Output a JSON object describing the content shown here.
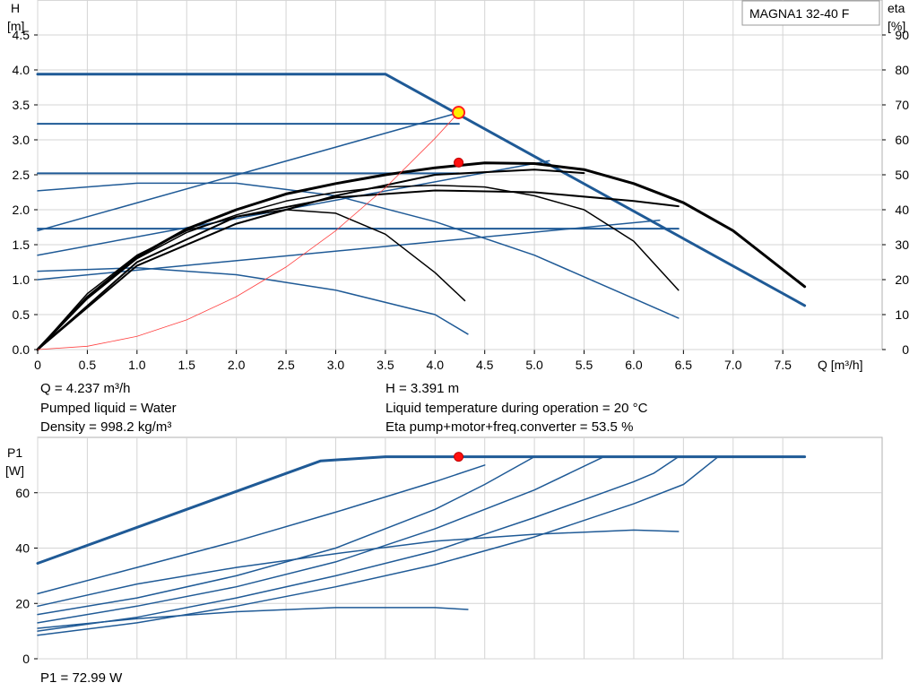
{
  "chart_data": [
    {
      "type": "line",
      "model_label": "MAGNA1 32-40 F",
      "y_label": "H",
      "y_unit": "[m]",
      "y2_label": "eta",
      "y2_unit": "[%]",
      "x_label": "Q [m³/h]",
      "xlim": [
        0,
        8.5
      ],
      "ylim": [
        0,
        5
      ],
      "y2lim": [
        0,
        100
      ],
      "x_ticks": [
        "0",
        "0.5",
        "1.0",
        "1.5",
        "2.0",
        "2.5",
        "3.0",
        "3.5",
        "4.0",
        "4.5",
        "5.0",
        "5.5",
        "6.0",
        "6.5",
        "7.0",
        "7.5"
      ],
      "y_ticks": [
        "0.0",
        "0.5",
        "1.0",
        "1.5",
        "2.0",
        "2.5",
        "3.0",
        "3.5",
        "4.0",
        "4.5"
      ],
      "y2_ticks": [
        "0",
        "10",
        "20",
        "30",
        "40",
        "50",
        "60",
        "70",
        "80",
        "90"
      ],
      "grid": true,
      "head_series": [
        {
          "x": [
            0,
            3.5,
            7.72
          ],
          "y": [
            3.94,
            3.94,
            0.63
          ],
          "role": "max-curve",
          "color": "#1f5a96",
          "width": 3
        },
        {
          "x": [
            0,
            4.24
          ],
          "y": [
            3.23,
            3.23
          ],
          "role": "constant-pressure",
          "color": "#1f5a96",
          "width": 2
        },
        {
          "x": [
            0,
            4.24
          ],
          "y": [
            2.52,
            2.52
          ],
          "role": "constant-pressure",
          "color": "#1f5a96",
          "width": 2
        },
        {
          "x": [
            0,
            6.45
          ],
          "y": [
            1.73,
            1.73
          ],
          "role": "constant-pressure",
          "color": "#1f5a96",
          "width": 2
        },
        {
          "x": [
            0,
            4.24
          ],
          "y": [
            1.7,
            3.39
          ],
          "role": "proportional-pressure",
          "color": "#1f5a96",
          "width": 1.5
        },
        {
          "x": [
            0,
            5.15
          ],
          "y": [
            1.35,
            2.7
          ],
          "role": "proportional-pressure",
          "color": "#1f5a96",
          "width": 1.5
        },
        {
          "x": [
            0,
            6.26
          ],
          "y": [
            1.0,
            1.85
          ],
          "role": "proportional-pressure",
          "color": "#1f5a96",
          "width": 1.5
        },
        {
          "x": [
            0,
            1.0,
            2.0,
            3.0,
            4.0,
            5.0,
            6.0,
            6.45
          ],
          "y": [
            2.27,
            2.38,
            2.38,
            2.2,
            1.83,
            1.35,
            0.73,
            0.45
          ],
          "role": "fixed-speed",
          "color": "#1f5a96",
          "width": 1.5
        },
        {
          "x": [
            0,
            1.0,
            2.0,
            3.0,
            4.0,
            4.33
          ],
          "y": [
            1.12,
            1.17,
            1.07,
            0.85,
            0.5,
            0.22
          ],
          "role": "fixed-speed",
          "color": "#1f5a96",
          "width": 1.5
        }
      ],
      "eta_series": [
        {
          "x": [
            0,
            0.5,
            1.0,
            1.5,
            2.0,
            2.5,
            3.0,
            3.5,
            4.0,
            4.5,
            5.0,
            5.5,
            6.0,
            6.5,
            7.0,
            7.72
          ],
          "y": [
            0,
            15,
            26.5,
            34.5,
            40,
            44.5,
            47.5,
            50,
            52,
            53.4,
            53.2,
            51.5,
            47.5,
            42,
            34,
            18
          ],
          "color": "#000000",
          "width": 3
        },
        {
          "x": [
            0,
            0.5,
            1.0,
            1.5,
            2.0,
            2.5,
            3.0,
            3.5,
            4.0,
            4.5,
            5.0,
            5.5,
            6.0,
            6.45
          ],
          "y": [
            0,
            14.5,
            26,
            33.5,
            38.5,
            42.5,
            45,
            46.5,
            47,
            46.5,
            44,
            40,
            31,
            17
          ],
          "color": "#000000",
          "width": 1.5
        },
        {
          "x": [
            0,
            0.5,
            1.0,
            1.5,
            2.0,
            2.5,
            3.0,
            3.5,
            4.0,
            4.3
          ],
          "y": [
            0,
            16,
            27,
            34,
            38,
            40,
            39,
            33,
            22,
            14
          ],
          "color": "#000000",
          "width": 1.5
        },
        {
          "x": [
            0,
            1.0,
            2.0,
            3.0,
            4.0,
            5.0,
            6.0,
            6.45
          ],
          "y": [
            0,
            25,
            38,
            43.5,
            45.5,
            45,
            42.5,
            41
          ],
          "color": "#000000",
          "width": 2
        },
        {
          "x": [
            0,
            1.0,
            2.0,
            3.0,
            4.0,
            5.0,
            5.5
          ],
          "y": [
            0,
            24,
            36,
            44,
            50,
            51.5,
            50.5
          ],
          "color": "#000000",
          "width": 2
        }
      ],
      "system_curve": {
        "x": [
          0,
          0.5,
          1.0,
          1.5,
          2.0,
          2.5,
          3.0,
          3.5,
          4.0,
          4.237
        ],
        "y": [
          0,
          0.047,
          0.189,
          0.425,
          0.756,
          1.181,
          1.7,
          2.314,
          3.022,
          3.391
        ],
        "color": "#ff4040"
      },
      "operating_point": {
        "Q": 4.237,
        "H": 3.391,
        "eta": 53.5
      }
    },
    {
      "type": "line",
      "y_label": "P1",
      "y_unit": "[W]",
      "xlim": [
        0,
        8.5
      ],
      "ylim": [
        0,
        80
      ],
      "y_ticks": [
        "0",
        "20",
        "40",
        "60"
      ],
      "grid": true,
      "series": [
        {
          "x": [
            0,
            2.85,
            3.5,
            7.72
          ],
          "y": [
            34.5,
            71.5,
            73,
            73
          ],
          "color": "#1f5a96",
          "width": 3
        },
        {
          "x": [
            0,
            1.0,
            2.0,
            3.0,
            4.0,
            4.5
          ],
          "y": [
            23.5,
            33,
            42.5,
            53,
            64,
            70
          ],
          "color": "#1f5a96",
          "width": 1.5
        },
        {
          "x": [
            0,
            1.0,
            2.0,
            3.0,
            4.0,
            4.5,
            5.0
          ],
          "y": [
            16,
            22,
            30,
            40,
            54,
            63,
            73
          ],
          "color": "#1f5a96",
          "width": 1.5
        },
        {
          "x": [
            0,
            1.0,
            2.0,
            3.0,
            4.0,
            5.0,
            5.7
          ],
          "y": [
            13,
            19,
            26,
            35,
            47,
            61,
            73
          ],
          "color": "#1f5a96",
          "width": 1.5
        },
        {
          "x": [
            0,
            1.0,
            2.0,
            3.0,
            4.0,
            5.0,
            6.0,
            6.2,
            6.45
          ],
          "y": [
            10,
            15,
            22,
            30,
            39,
            51,
            64,
            67,
            73
          ],
          "color": "#1f5a96",
          "width": 1.5
        },
        {
          "x": [
            0,
            1.0,
            2.0,
            3.0,
            4.0,
            5.0,
            6.0,
            6.5,
            6.85
          ],
          "y": [
            8.5,
            13,
            19,
            26,
            34,
            44,
            56,
            63,
            73
          ],
          "color": "#1f5a96",
          "width": 1.5
        },
        {
          "x": [
            0,
            1.0,
            2.0,
            3.0,
            4.0,
            5.0,
            6.0,
            6.45
          ],
          "y": [
            19,
            27,
            33,
            38,
            42.5,
            45,
            46.5,
            46
          ],
          "color": "#1f5a96",
          "width": 1.5
        },
        {
          "x": [
            0,
            1.0,
            2.0,
            3.0,
            4.0,
            4.33
          ],
          "y": [
            11,
            14.5,
            17,
            18.5,
            18.5,
            17.8
          ],
          "color": "#1f5a96",
          "width": 1.5
        }
      ],
      "operating_point": {
        "Q": 4.237,
        "P1": 72.99
      }
    }
  ],
  "info": {
    "q": "Q = 4.237 m³/h",
    "h": "H = 3.391 m",
    "liquid": "Pumped liquid = Water",
    "temp": "Liquid temperature during operation = 20 °C",
    "density": "Density = 998.2 kg/m³",
    "eta": "Eta pump+motor+freq.converter = 53.5 %",
    "p1": "P1 = 72.99 W"
  }
}
